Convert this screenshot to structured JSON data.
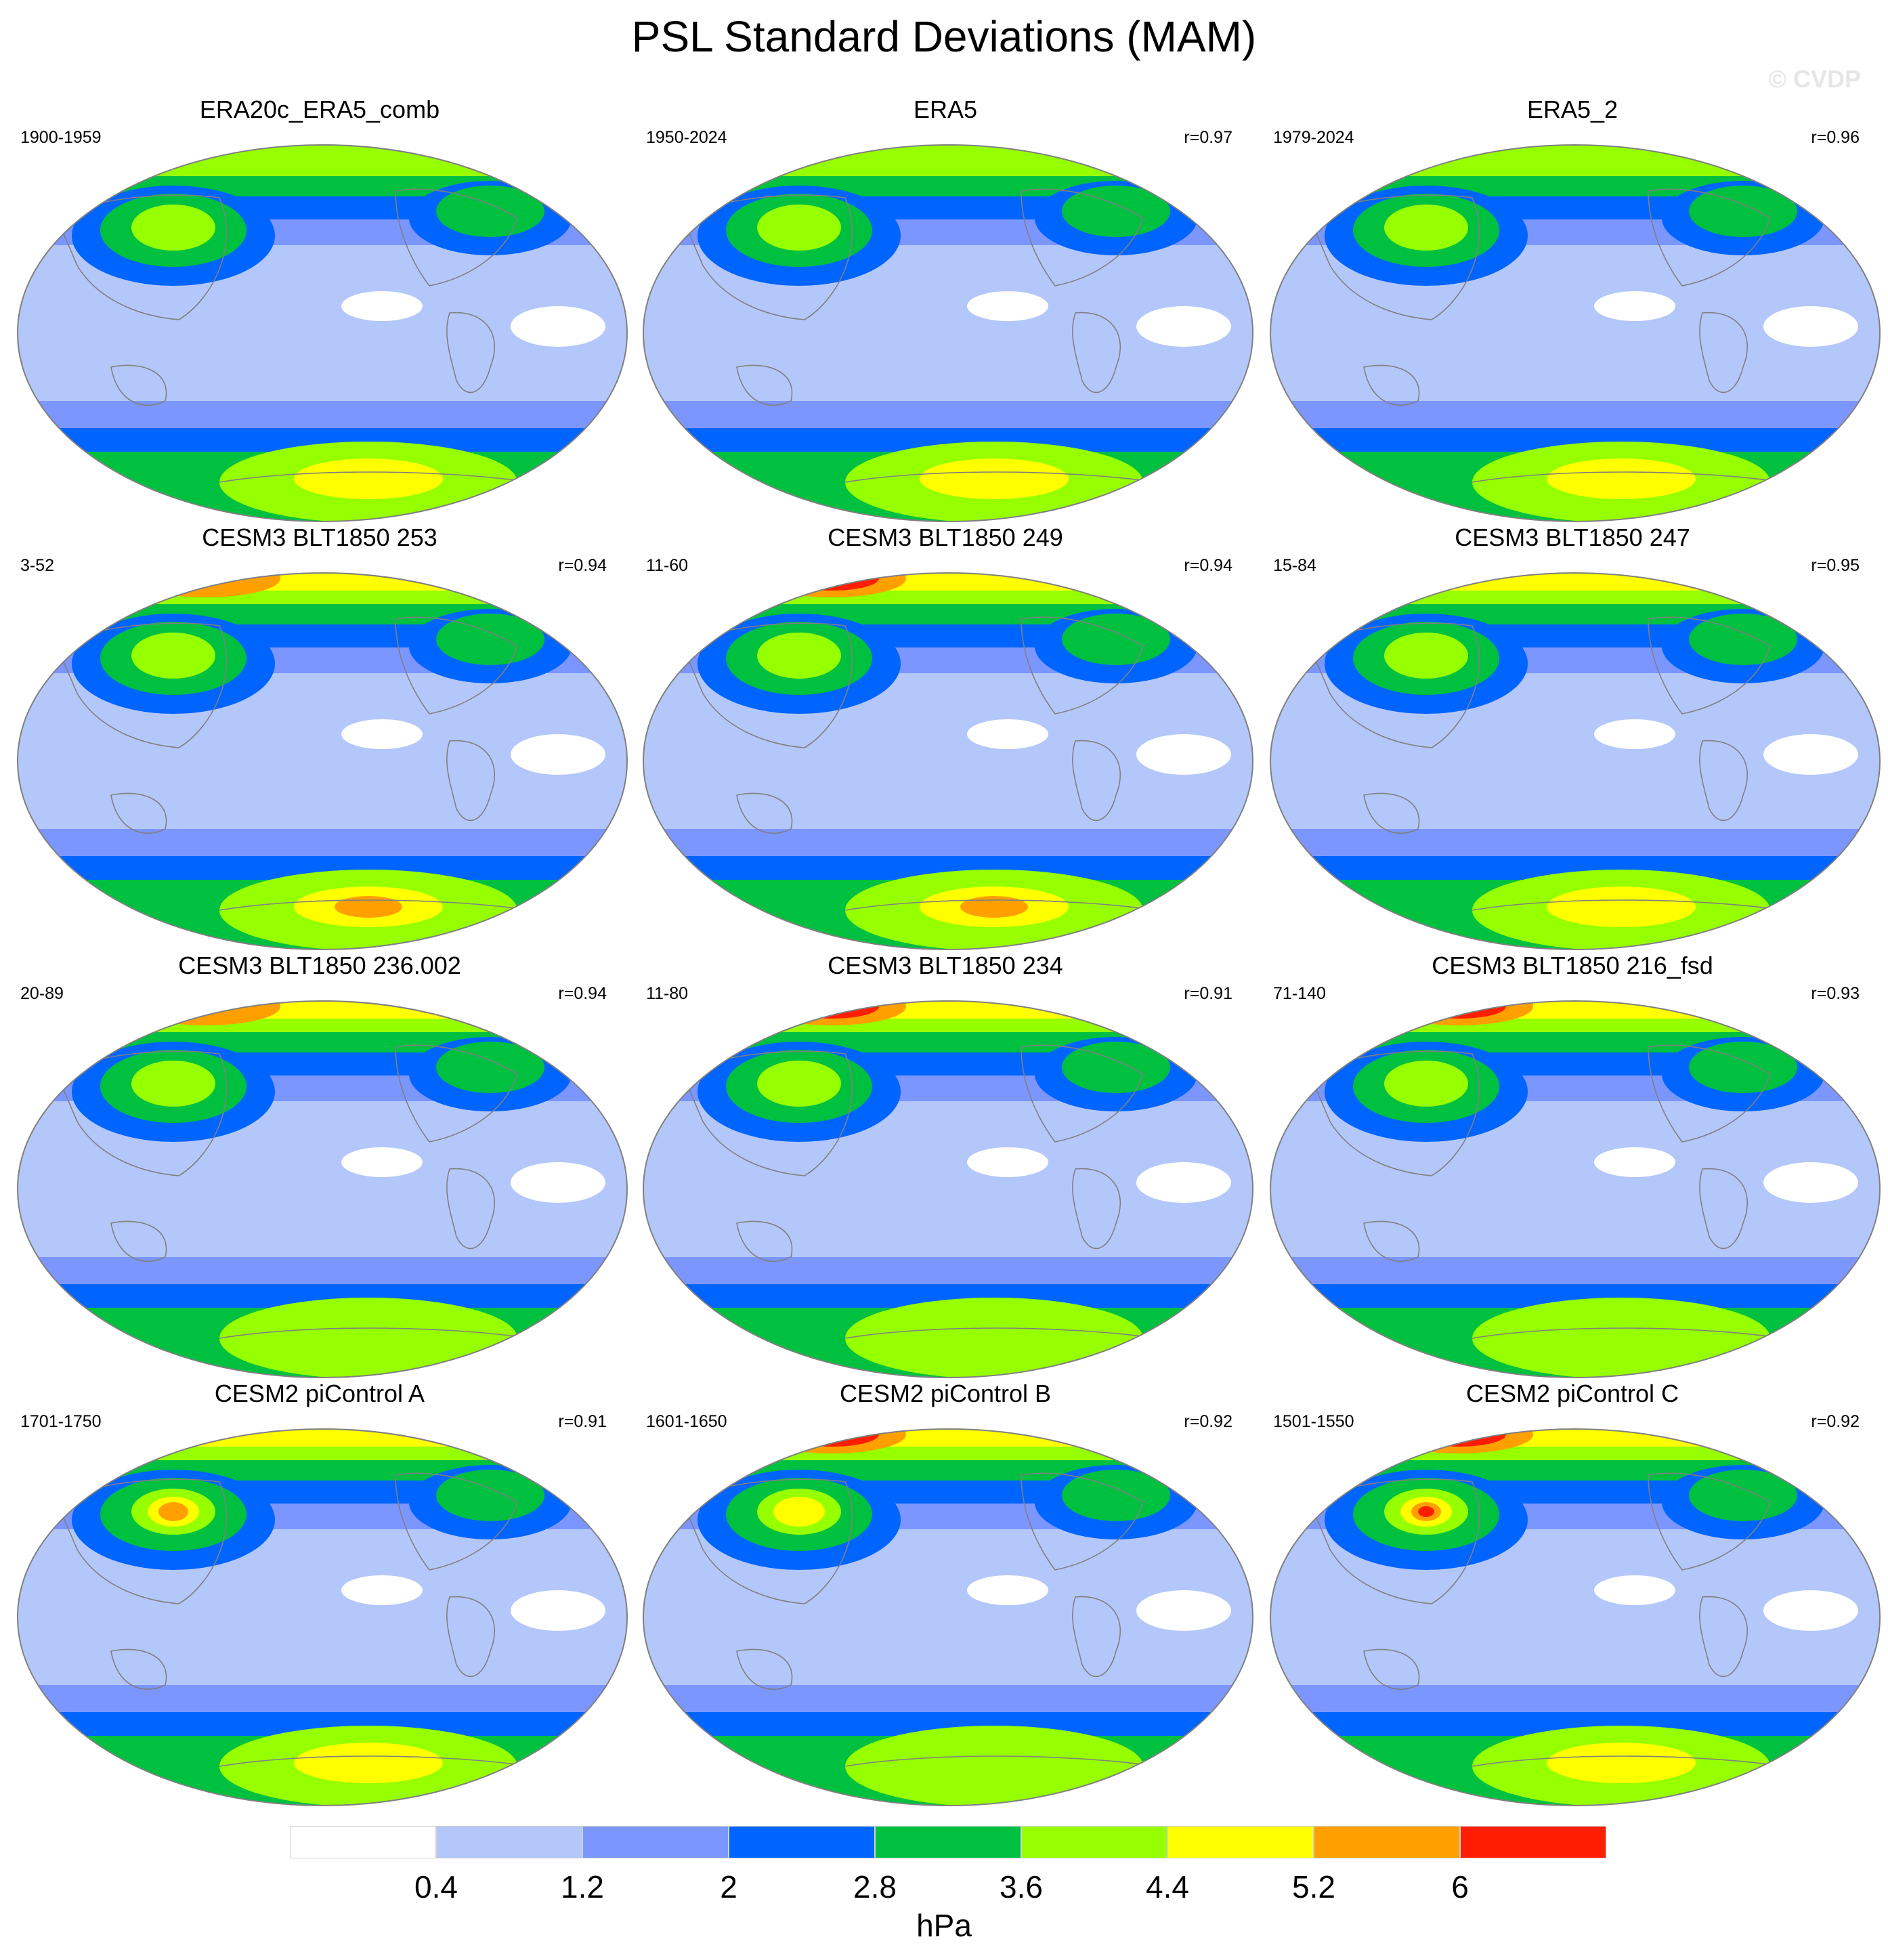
{
  "title": "PSL Standard Deviations (MAM)",
  "watermark": "© CVDP",
  "colorbar": {
    "units": "hPa",
    "labels": [
      "0.4",
      "1.2",
      "2",
      "2.8",
      "3.6",
      "4.4",
      "5.2",
      "6"
    ],
    "colors": [
      "#ffffff",
      "#b4c7fa",
      "#7b96ff",
      "#0064ff",
      "#00c040",
      "#96ff00",
      "#ffff00",
      "#ffa000",
      "#ff1e00"
    ]
  },
  "panels": [
    {
      "title": "ERA20c_ERA5_comb",
      "period": "1900-1959",
      "corr": "",
      "nh_peak": 5,
      "np_low": 4,
      "sh_peak": 6
    },
    {
      "title": "ERA5",
      "period": "1950-2024",
      "corr": "r=0.97",
      "nh_peak": 5,
      "np_low": 4,
      "sh_peak": 6
    },
    {
      "title": "ERA5_2",
      "period": "1979-2024",
      "corr": "r=0.96",
      "nh_peak": 5,
      "np_low": 4,
      "sh_peak": 6
    },
    {
      "title": "CESM3 BLT1850 253",
      "period": "3-52",
      "corr": "r=0.94",
      "nh_peak": 7,
      "np_low": 4,
      "sh_peak": 7
    },
    {
      "title": "CESM3 BLT1850 249",
      "period": "11-60",
      "corr": "r=0.94",
      "nh_peak": 8,
      "np_low": 5,
      "sh_peak": 7
    },
    {
      "title": "CESM3 BLT1850 247",
      "period": "15-84",
      "corr": "r=0.95",
      "nh_peak": 6,
      "np_low": 5,
      "sh_peak": 6
    },
    {
      "title": "CESM3 BLT1850 236.002",
      "period": "20-89",
      "corr": "r=0.94",
      "nh_peak": 7,
      "np_low": 4,
      "sh_peak": 5
    },
    {
      "title": "CESM3 BLT1850 234",
      "period": "11-80",
      "corr": "r=0.91",
      "nh_peak": 8,
      "np_low": 4,
      "sh_peak": 5
    },
    {
      "title": "CESM3 BLT1850 216_fsd",
      "period": "71-140",
      "corr": "r=0.93",
      "nh_peak": 8,
      "np_low": 4,
      "sh_peak": 5
    },
    {
      "title": "CESM2 piControl A",
      "period": "1701-1750",
      "corr": "r=0.91",
      "nh_peak": 6,
      "np_low": 7,
      "sh_peak": 6
    },
    {
      "title": "CESM2 piControl B",
      "period": "1601-1650",
      "corr": "r=0.92",
      "nh_peak": 8,
      "np_low": 6,
      "sh_peak": 5
    },
    {
      "title": "CESM2 piControl C",
      "period": "1501-1550",
      "corr": "r=0.92",
      "nh_peak": 8,
      "np_low": 8,
      "sh_peak": 6
    }
  ]
}
